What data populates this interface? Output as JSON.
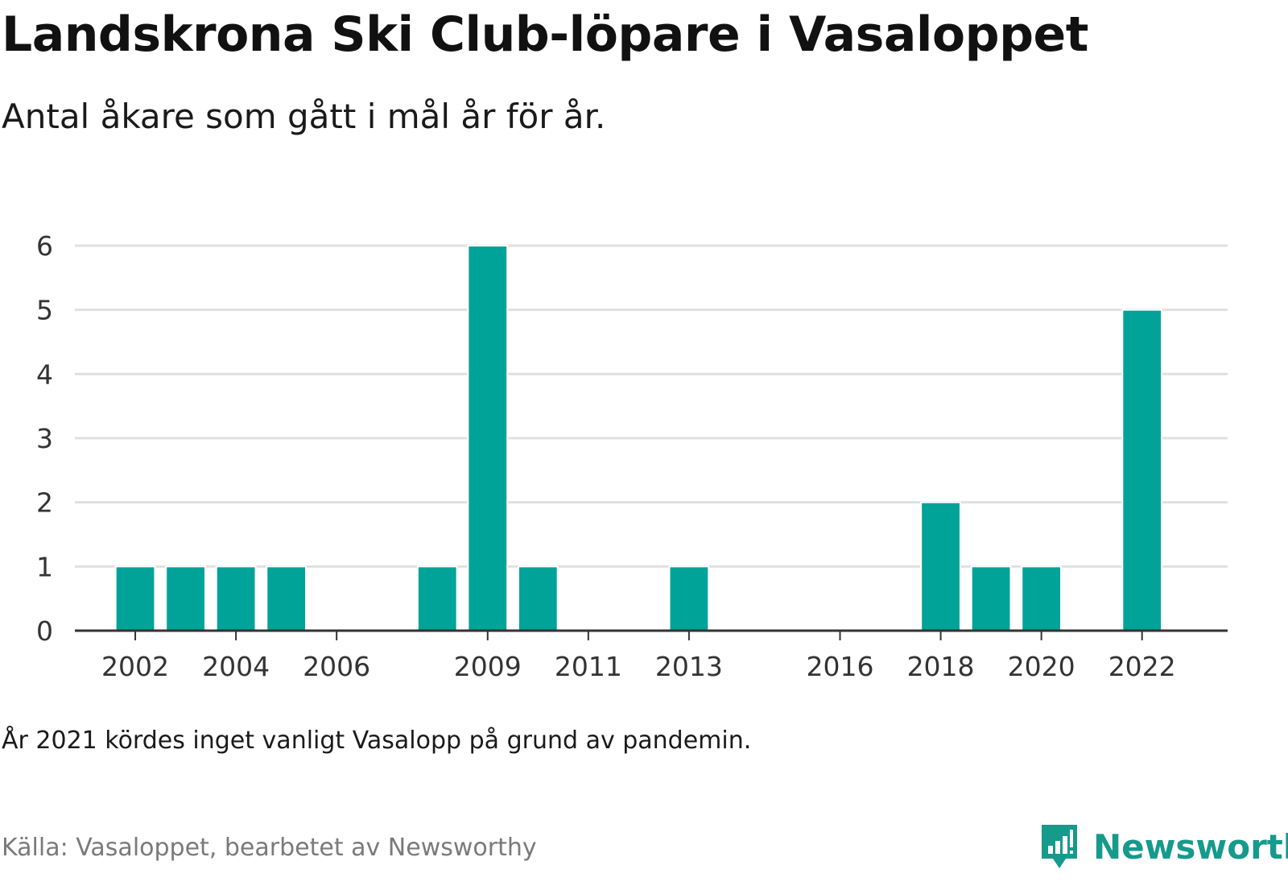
{
  "header": {
    "title": "Landskrona Ski Club-löpare i Vasaloppet",
    "subtitle": "Antal åkare som gått i mål år för år."
  },
  "footer": {
    "note": "År 2021 kördes inget vanligt Vasalopp på grund av pandemin.",
    "source": "Källa: Vasaloppet, bearbetet av Newsworthy",
    "brand": "Newsworthy",
    "brand_icon": "newsworthy-logo-icon"
  },
  "colors": {
    "bar": "#00a398",
    "grid": "#e0e0e0",
    "axis": "#333333",
    "brand": "#159a8c"
  },
  "chart_data": {
    "type": "bar",
    "x": [
      2002,
      2003,
      2004,
      2005,
      2008,
      2009,
      2010,
      2013,
      2018,
      2019,
      2020,
      2022
    ],
    "values": [
      1,
      1,
      1,
      1,
      1,
      6,
      1,
      1,
      2,
      1,
      1,
      5
    ],
    "xlim": [
      2000.8,
      2023.7
    ],
    "ylim": [
      0,
      6
    ],
    "x_ticks": [
      "2002",
      "2004",
      "2006",
      "2009",
      "2011",
      "2013",
      "2016",
      "2018",
      "2020",
      "2022"
    ],
    "y_ticks": [
      "0",
      "1",
      "2",
      "3",
      "4",
      "5",
      "6"
    ],
    "grid": true
  }
}
